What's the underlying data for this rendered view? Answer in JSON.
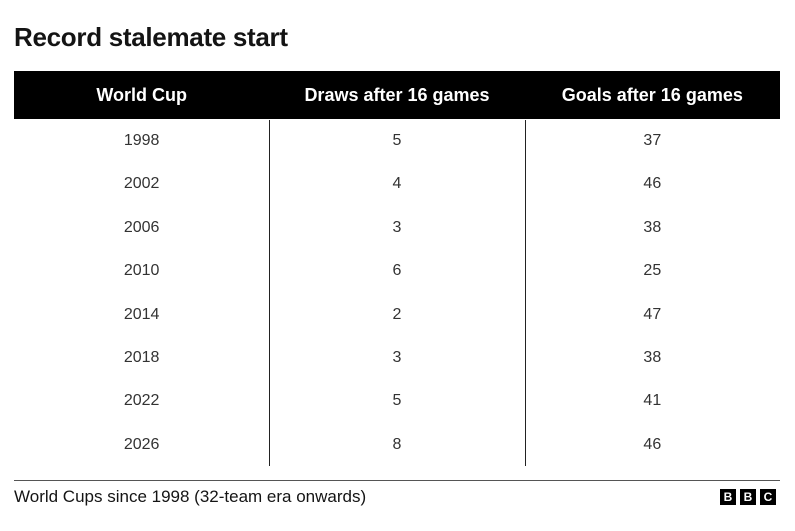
{
  "header": {
    "title": "Record stalemate start"
  },
  "table": {
    "columns": [
      "World Cup",
      "Draws after 16 games",
      "Goals after 16 games"
    ],
    "rows": [
      [
        1998,
        5,
        37
      ],
      [
        2002,
        4,
        46
      ],
      [
        2006,
        3,
        38
      ],
      [
        2010,
        6,
        25
      ],
      [
        2014,
        2,
        47
      ],
      [
        2018,
        3,
        38
      ],
      [
        2022,
        5,
        41
      ],
      [
        2026,
        8,
        46
      ]
    ]
  },
  "footer": {
    "note": "World Cups since 1998 (32-team era onwards)",
    "logo": [
      "B",
      "B",
      "C"
    ]
  }
}
